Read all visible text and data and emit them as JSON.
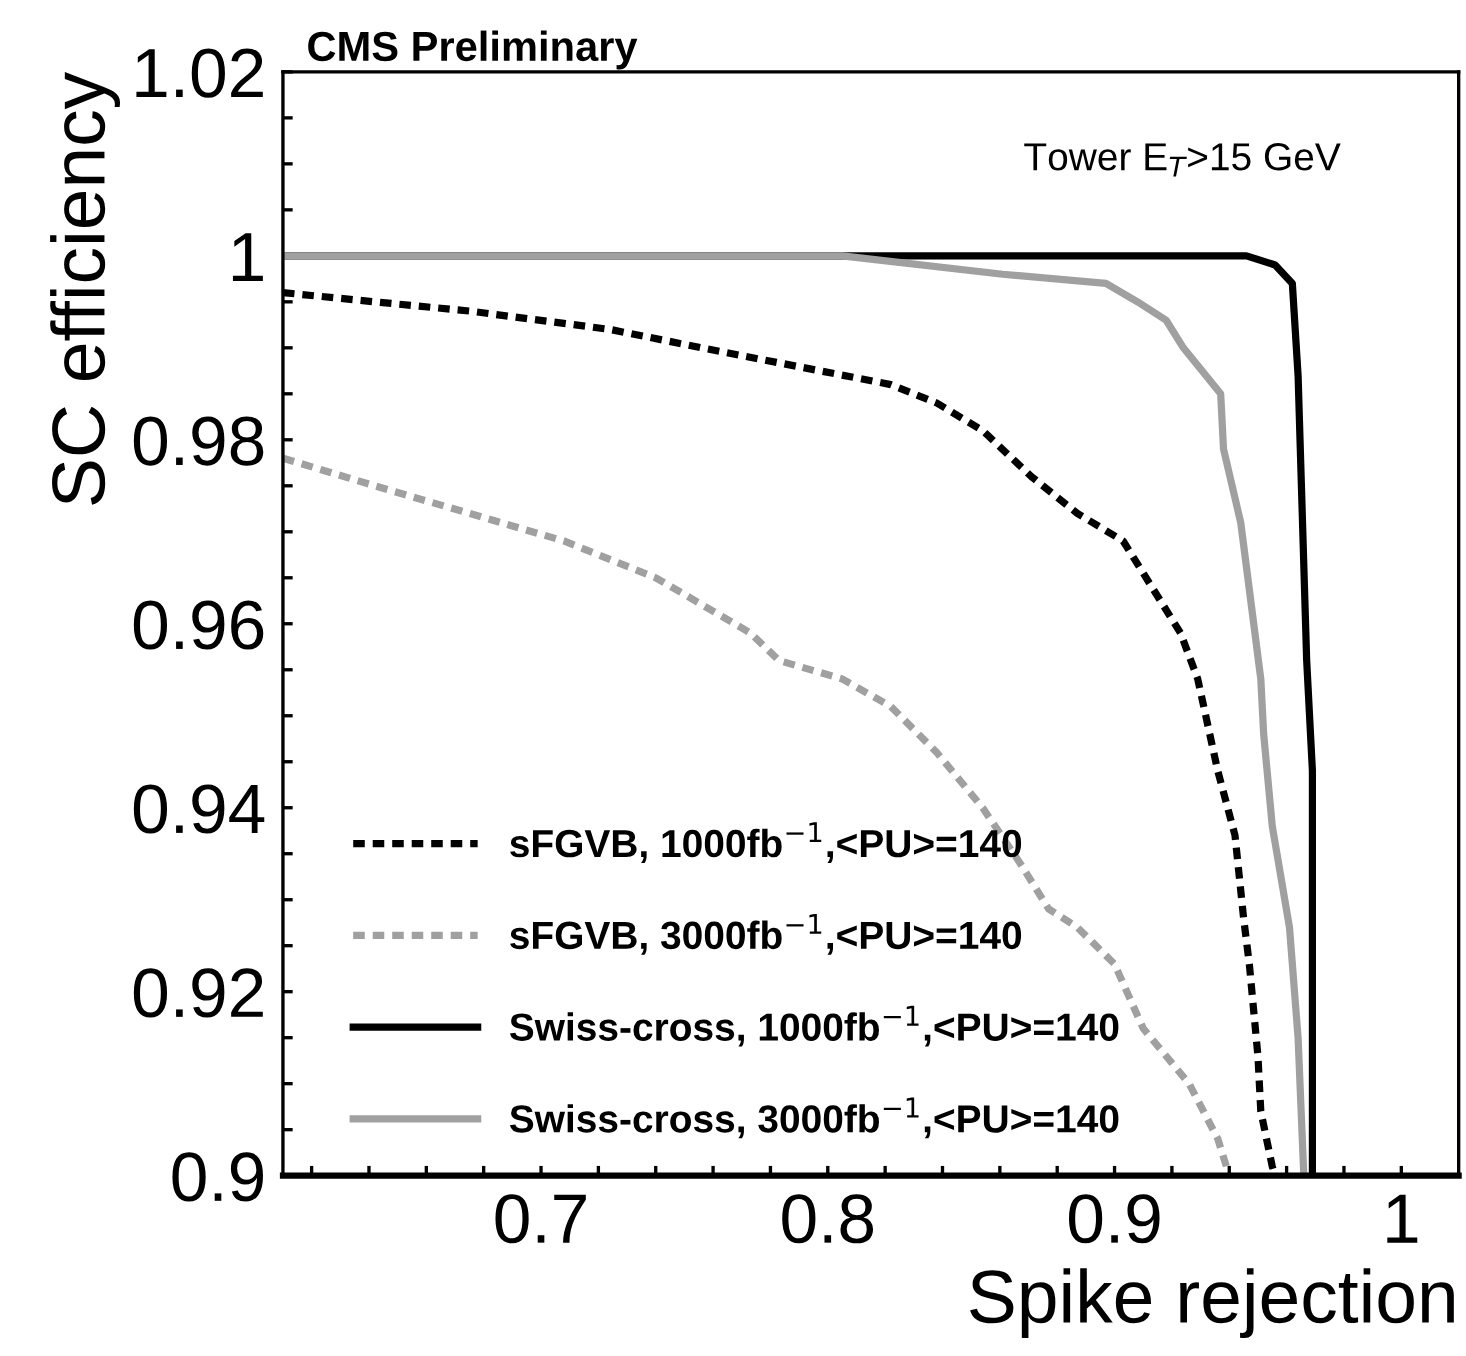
{
  "chart_data": {
    "type": "line",
    "title": "CMS Preliminary",
    "xlabel": "Spike rejection",
    "ylabel": "SC efficiency",
    "annotations": [
      "Tower E$_{T}$>15 GeV"
    ],
    "xlim": [
      0.61,
      1.02
    ],
    "ylim": [
      0.9,
      1.02
    ],
    "xticks": [
      {
        "value": 0.62,
        "label": null
      },
      {
        "value": 0.64,
        "label": null
      },
      {
        "value": 0.66,
        "label": null
      },
      {
        "value": 0.68,
        "label": null
      },
      0.7,
      {
        "value": 0.72,
        "label": null
      },
      {
        "value": 0.74,
        "label": null
      },
      {
        "value": 0.76,
        "label": null
      },
      {
        "value": 0.78,
        "label": null
      },
      0.8,
      {
        "value": 0.82,
        "label": null
      },
      {
        "value": 0.84,
        "label": null
      },
      {
        "value": 0.86,
        "label": null
      },
      {
        "value": 0.88,
        "label": null
      },
      0.9,
      {
        "value": 0.92,
        "label": null
      },
      {
        "value": 0.94,
        "label": null
      },
      {
        "value": 0.96,
        "label": null
      },
      {
        "value": 0.98,
        "label": null
      },
      1
    ],
    "yticks": [
      0.9,
      {
        "value": 0.905,
        "label": null
      },
      {
        "value": 0.91,
        "label": null
      },
      {
        "value": 0.915,
        "label": null
      },
      0.92,
      {
        "value": 0.925,
        "label": null
      },
      {
        "value": 0.93,
        "label": null
      },
      {
        "value": 0.935,
        "label": null
      },
      0.94,
      {
        "value": 0.945,
        "label": null
      },
      {
        "value": 0.95,
        "label": null
      },
      {
        "value": 0.955,
        "label": null
      },
      0.96,
      {
        "value": 0.965,
        "label": null
      },
      {
        "value": 0.97,
        "label": null
      },
      {
        "value": 0.975,
        "label": null
      },
      0.98,
      {
        "value": 0.985,
        "label": null
      },
      {
        "value": 0.99,
        "label": null
      },
      {
        "value": 0.995,
        "label": null
      },
      1,
      {
        "value": 1.005,
        "label": null
      },
      {
        "value": 1.01,
        "label": null
      },
      {
        "value": 1.015,
        "label": null
      },
      1.02
    ],
    "legend": "bottom left",
    "grid": false,
    "series": [
      {
        "name": "sFGVB, 1000fb$^{−1}$,<PU>=140",
        "color": "#000000",
        "line_style": "dotted",
        "x": [
          0.61,
          0.642,
          0.675,
          0.724,
          0.756,
          0.789,
          0.822,
          0.838,
          0.854,
          0.871,
          0.887,
          0.903,
          0.913,
          0.923,
          0.929,
          0.936,
          0.942,
          0.945,
          0.947,
          0.95,
          0.951,
          0.955,
          0.956
        ],
        "values": [
          0.996,
          0.995,
          0.994,
          0.992,
          0.99,
          0.988,
          0.986,
          0.984,
          0.981,
          0.976,
          0.972,
          0.969,
          0.964,
          0.959,
          0.954,
          0.944,
          0.937,
          0.928,
          0.923,
          0.913,
          0.907,
          0.901,
          0.9
        ]
      },
      {
        "name": "sFGVB, 3000fb$^{−1}$,<PU>=140",
        "color": "#a0a0a0",
        "line_style": "dotted",
        "x": [
          0.61,
          0.642,
          0.675,
          0.708,
          0.74,
          0.773,
          0.783,
          0.805,
          0.822,
          0.838,
          0.854,
          0.867,
          0.877,
          0.887,
          0.9,
          0.91,
          0.926,
          0.936,
          0.94
        ],
        "values": [
          0.978,
          0.975,
          0.972,
          0.969,
          0.965,
          0.959,
          0.956,
          0.954,
          0.951,
          0.946,
          0.94,
          0.934,
          0.929,
          0.927,
          0.923,
          0.916,
          0.91,
          0.904,
          0.9
        ]
      },
      {
        "name": "Swiss-cross, 1000fb$^{−1}$,<PU>=140",
        "color": "#000000",
        "line_style": "solid",
        "x": [
          0.61,
          0.946,
          0.956,
          0.962,
          0.963,
          0.964,
          0.967,
          0.969,
          0.969
        ],
        "values": [
          1.0,
          1.0,
          0.999,
          0.997,
          0.992,
          0.987,
          0.956,
          0.944,
          0.9
        ]
      },
      {
        "name": "Swiss-cross, 3000fb$^{−1}$,<PU>=140",
        "color": "#a0a0a0",
        "line_style": "solid",
        "x": [
          0.61,
          0.805,
          0.861,
          0.897,
          0.908,
          0.918,
          0.924,
          0.937,
          0.938,
          0.944,
          0.951,
          0.952,
          0.955,
          0.961,
          0.964,
          0.966
        ],
        "values": [
          1.0,
          1.0,
          0.998,
          0.997,
          0.995,
          0.993,
          0.99,
          0.985,
          0.979,
          0.971,
          0.954,
          0.948,
          0.938,
          0.927,
          0.915,
          0.9
        ]
      }
    ]
  }
}
